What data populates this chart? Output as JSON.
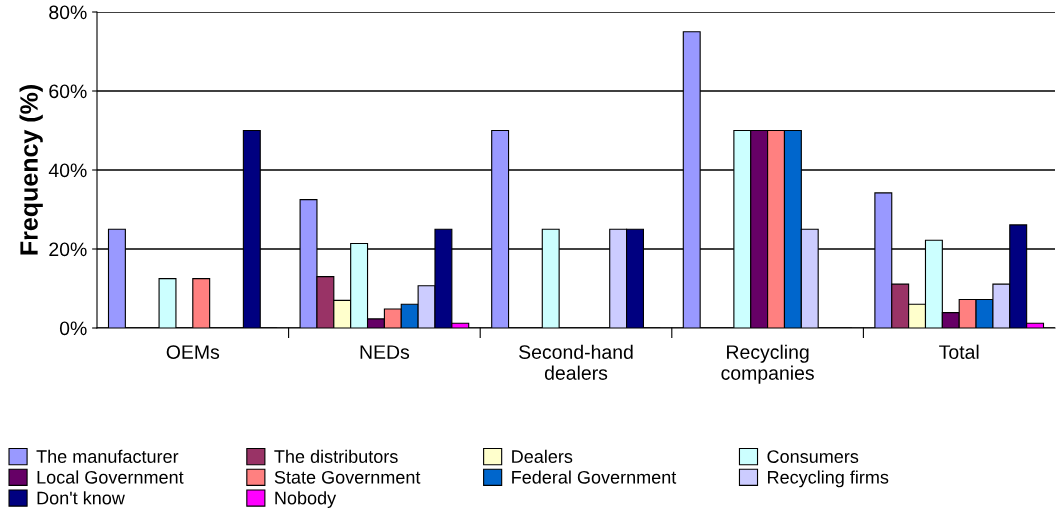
{
  "chart_data": {
    "type": "bar",
    "ylabel": "Frequency (%)",
    "categories": [
      "OEMs",
      "NEDs",
      "Second-hand\ndealers",
      "Recycling\ncompanies",
      "Total"
    ],
    "series": [
      {
        "name": "The manufacturer",
        "color": "#9999ff",
        "values": [
          25,
          32.5,
          50,
          75,
          34.2
        ]
      },
      {
        "name": "The distributors",
        "color": "#993366",
        "values": [
          0,
          13,
          0,
          0,
          11.1
        ]
      },
      {
        "name": "Dealers",
        "color": "#ffffcc",
        "values": [
          0,
          7,
          0,
          0,
          6
        ]
      },
      {
        "name": "Consumers",
        "color": "#ccffff",
        "values": [
          12.5,
          21.4,
          25,
          50,
          22.2
        ]
      },
      {
        "name": "Local Government",
        "color": "#660066",
        "values": [
          0,
          2.3,
          0,
          50,
          3.9
        ]
      },
      {
        "name": "State Government",
        "color": "#ff8080",
        "values": [
          12.5,
          4.8,
          0,
          50,
          7.2
        ]
      },
      {
        "name": "Federal Government",
        "color": "#0066cc",
        "values": [
          0,
          6,
          0,
          50,
          7.2
        ]
      },
      {
        "name": "Recycling firms",
        "color": "#ccccff",
        "values": [
          0,
          10.7,
          25,
          25,
          11.1
        ]
      },
      {
        "name": "Don't know",
        "color": "#000080",
        "values": [
          50,
          25,
          25,
          0,
          26.1
        ]
      },
      {
        "name": "Nobody",
        "color": "#ff00ff",
        "values": [
          0,
          1.2,
          0,
          0,
          1.2
        ]
      }
    ],
    "ylim": [
      0,
      80
    ],
    "yticks": [
      {
        "value": 0,
        "label": "0%"
      },
      {
        "value": 20,
        "label": "20%"
      },
      {
        "value": 40,
        "label": "40%"
      },
      {
        "value": 60,
        "label": "60%"
      },
      {
        "value": 80,
        "label": "80%"
      }
    ],
    "grid": "y",
    "legend": "bottom"
  }
}
